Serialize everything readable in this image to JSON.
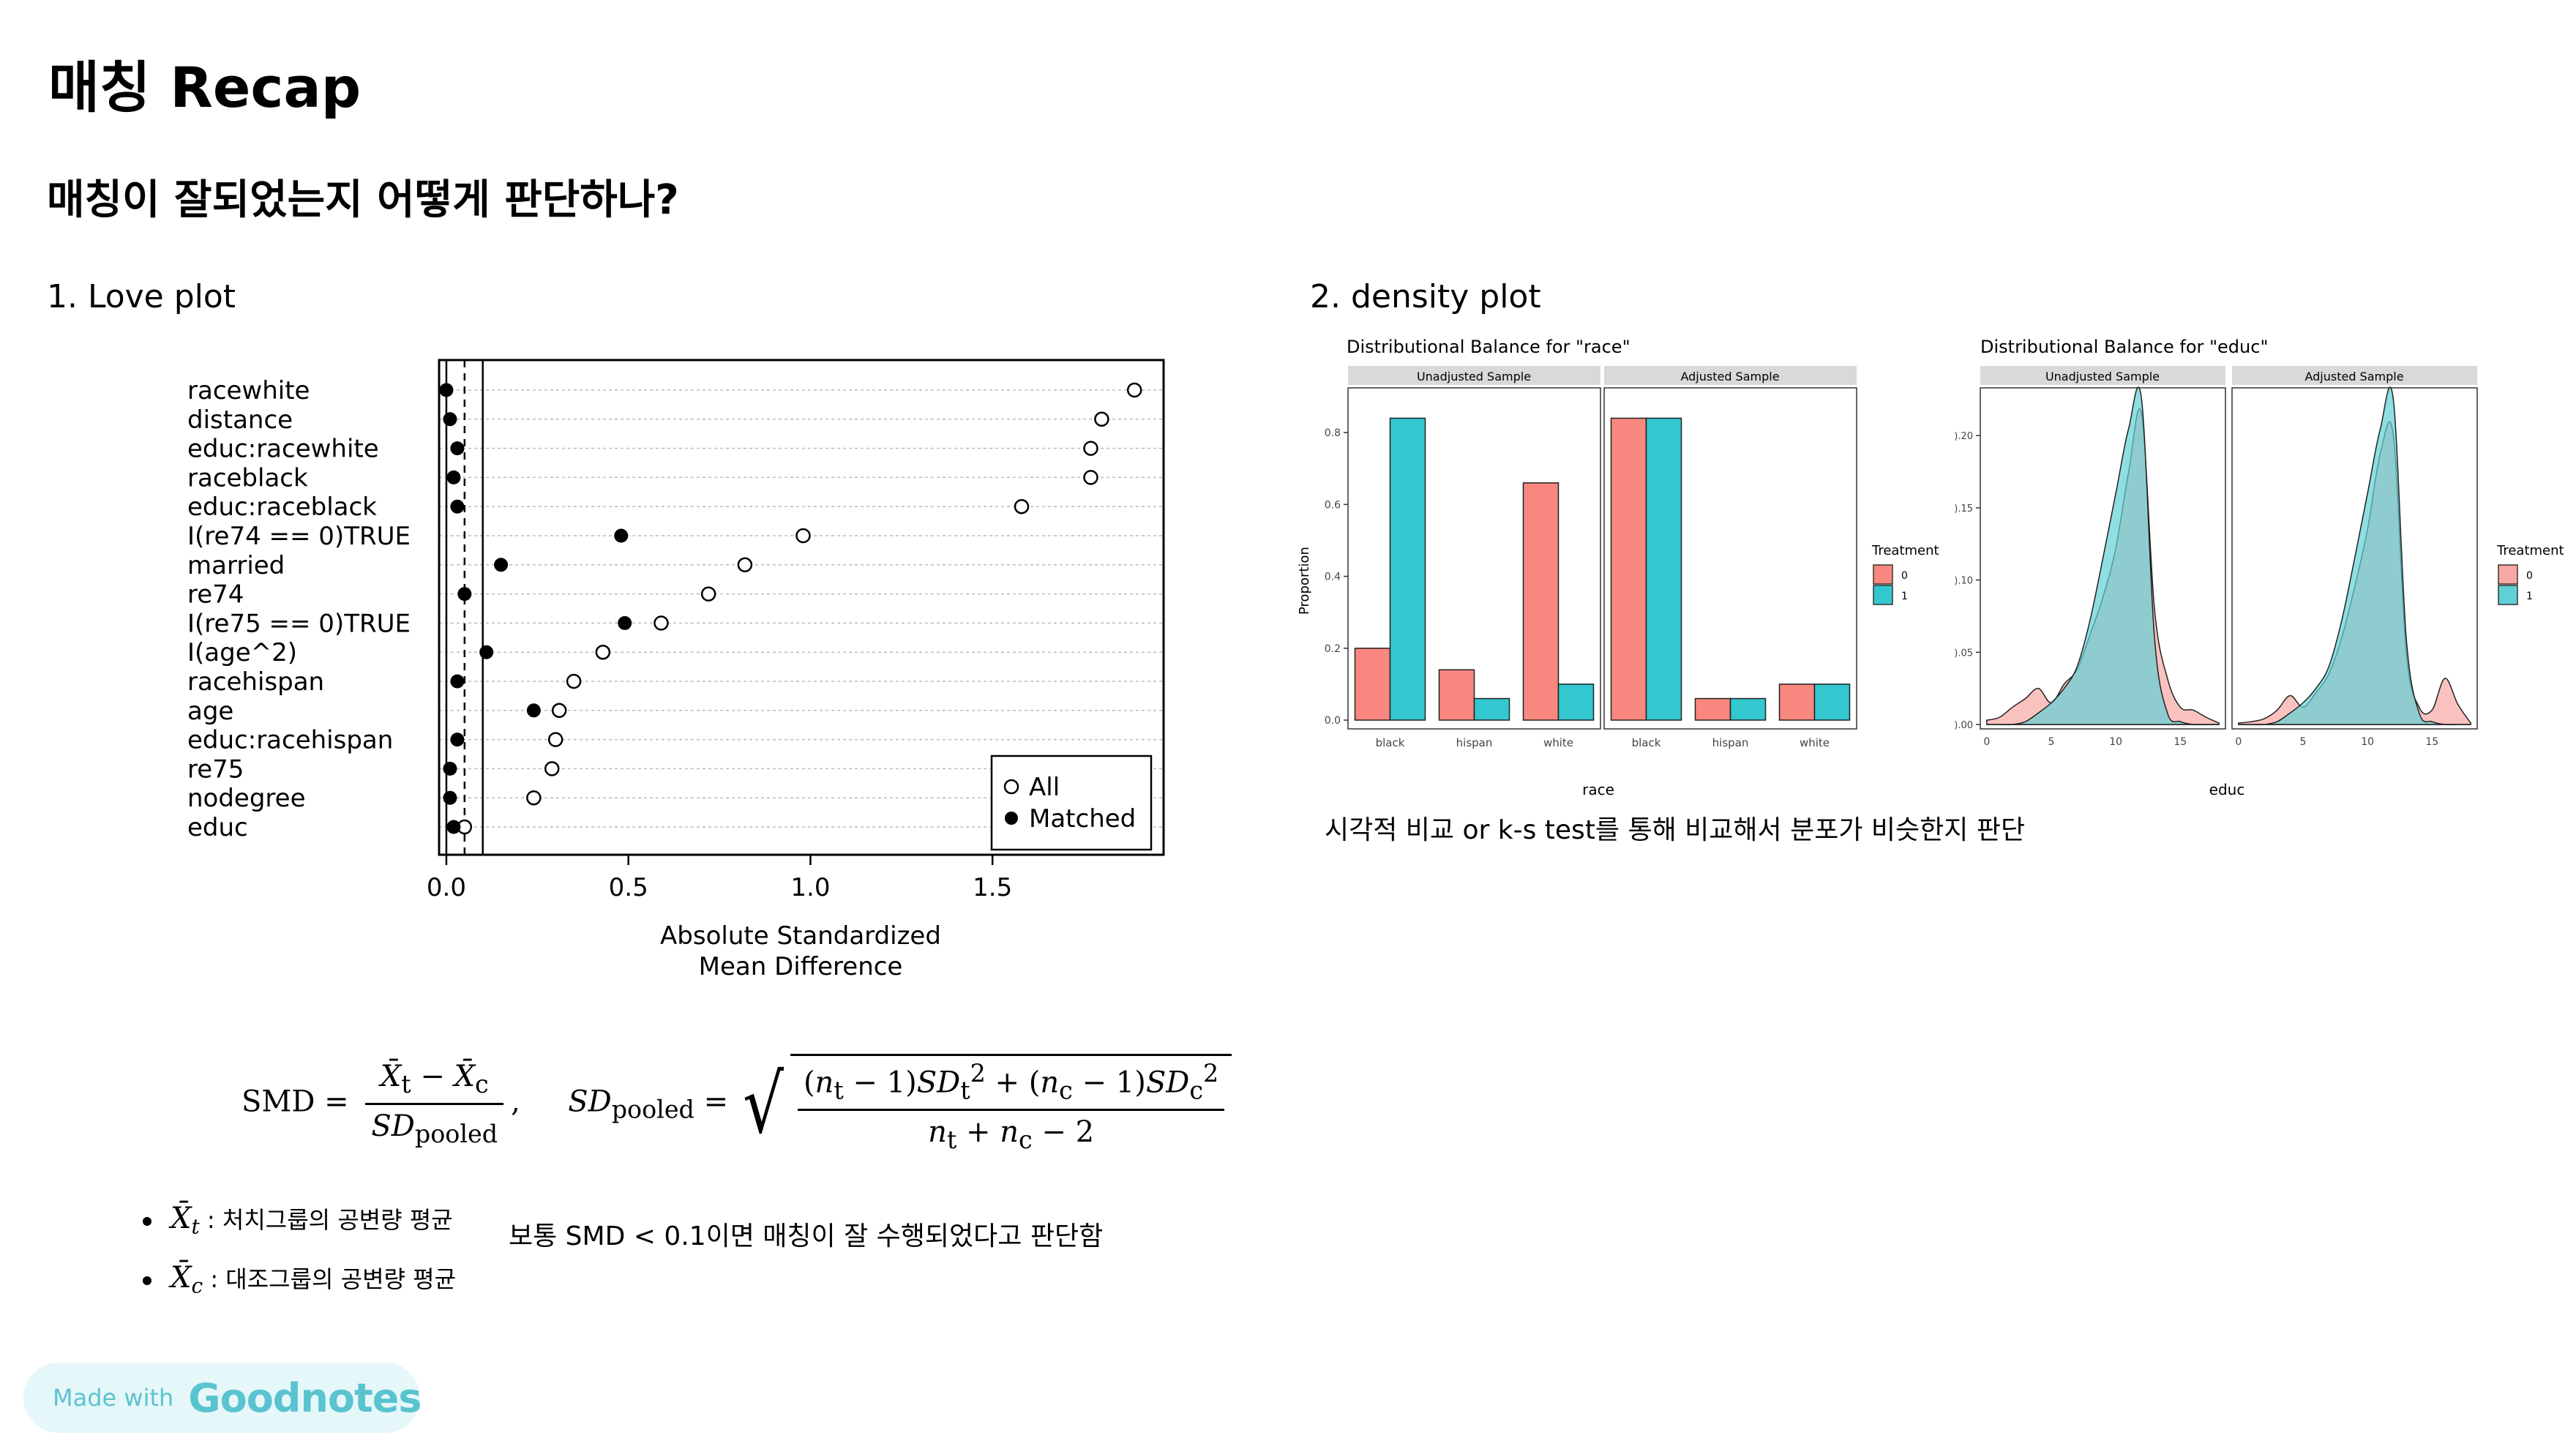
{
  "title": "매칭 Recap",
  "question": "매칭이 잘되었는지 어떻게 판단하나?",
  "section1": "1. Love plot",
  "section2": "2. density plot",
  "love_plot": {
    "chart_data": {
      "type": "scatter",
      "variables": [
        "racewhite",
        "distance",
        "educ:racewhite",
        "raceblack",
        "educ:raceblack",
        "I(re74 == 0)TRUE",
        "married",
        "re74",
        "I(re75 == 0)TRUE",
        "I(age^2)",
        "racehispan",
        "age",
        "educ:racehispan",
        "re75",
        "nodegree",
        "educ"
      ],
      "series": [
        {
          "name": "All",
          "marker": "open-circle",
          "values": [
            1.89,
            1.8,
            1.77,
            1.77,
            1.58,
            0.98,
            0.82,
            0.72,
            0.59,
            0.43,
            0.35,
            0.31,
            0.3,
            0.29,
            0.24,
            0.05
          ]
        },
        {
          "name": "Matched",
          "marker": "filled-circle",
          "values": [
            0.0,
            0.01,
            0.03,
            0.02,
            0.03,
            0.48,
            0.15,
            0.05,
            0.49,
            0.11,
            0.03,
            0.24,
            0.03,
            0.01,
            0.01,
            0.02
          ]
        }
      ],
      "xlabel": "Absolute Standardized\nMean Difference",
      "xticks": [
        0.0,
        0.5,
        1.0,
        1.5
      ],
      "xlim": [
        -0.02,
        1.97
      ],
      "threshold_lines": [
        0.05,
        0.1
      ],
      "legend_position": "bottom-right"
    },
    "xlabel_line1": "Absolute Standardized",
    "xlabel_line2": "Mean Difference",
    "tick_labels": [
      "0.0",
      "0.5",
      "1.0",
      "1.5"
    ],
    "legend": {
      "all": "All",
      "matched": "Matched"
    }
  },
  "race_plot": {
    "chart_data": {
      "type": "bar",
      "title": "Distributional Balance for \"race\"",
      "panels": [
        "Unadjusted Sample",
        "Adjusted Sample"
      ],
      "categories": [
        "black",
        "hispan",
        "white"
      ],
      "series": [
        {
          "name": "0",
          "color": "#f8877f",
          "unadjusted": [
            0.2,
            0.14,
            0.66
          ],
          "adjusted": [
            0.84,
            0.06,
            0.1
          ]
        },
        {
          "name": "1",
          "color": "#33c7cf",
          "unadjusted": [
            0.84,
            0.06,
            0.1
          ],
          "adjusted": [
            0.84,
            0.06,
            0.1
          ]
        }
      ],
      "xlabel": "race",
      "ylabel": "Proportion",
      "yticks": [
        0.0,
        0.2,
        0.4,
        0.6,
        0.8
      ],
      "ylim": [
        0,
        0.9
      ],
      "legend_title": "Treatment",
      "legend_position": "right"
    },
    "ytick_labels": [
      "0.0",
      "0.2",
      "0.4",
      "0.6",
      "0.8"
    ]
  },
  "educ_plot": {
    "chart_data": {
      "type": "area",
      "title": "Distributional Balance for \"educ\"",
      "panels": [
        "Unadjusted Sample",
        "Adjusted Sample"
      ],
      "x": [
        0,
        1,
        2,
        3,
        4,
        5,
        6,
        7,
        8,
        9,
        10,
        11,
        12,
        13,
        14,
        15,
        16,
        17,
        18
      ],
      "series": [
        {
          "name": "0",
          "color": "#f8a8a2",
          "unadjusted": [
            0.003,
            0.005,
            0.012,
            0.018,
            0.025,
            0.015,
            0.028,
            0.038,
            0.062,
            0.088,
            0.122,
            0.175,
            0.215,
            0.08,
            0.032,
            0.012,
            0.01,
            0.005,
            0.001
          ],
          "adjusted": [
            0.001,
            0.002,
            0.004,
            0.01,
            0.02,
            0.012,
            0.022,
            0.035,
            0.06,
            0.095,
            0.135,
            0.188,
            0.2,
            0.05,
            0.012,
            0.01,
            0.032,
            0.014,
            0.001
          ]
        },
        {
          "name": "1",
          "color": "#5fd0d6",
          "unadjusted": [
            0.0,
            0.0,
            0.0,
            0.002,
            0.008,
            0.015,
            0.025,
            0.04,
            0.072,
            0.115,
            0.16,
            0.205,
            0.225,
            0.06,
            0.008,
            0.002,
            0.0,
            0.0,
            0.0
          ],
          "adjusted": [
            0.0,
            0.0,
            0.0,
            0.002,
            0.008,
            0.015,
            0.025,
            0.04,
            0.072,
            0.115,
            0.16,
            0.205,
            0.225,
            0.06,
            0.008,
            0.002,
            0.0,
            0.0,
            0.0
          ]
        }
      ],
      "xlabel": "educ",
      "xticks": [
        0,
        5,
        10,
        15
      ],
      "yticks": [
        0.0,
        0.05,
        0.1,
        0.15,
        0.2
      ],
      "ylim": [
        0,
        0.23
      ],
      "legend_title": "Treatment",
      "legend_position": "right"
    },
    "ytick_labels": [
      ").00",
      ").05",
      ").10",
      ").15",
      ").20"
    ]
  },
  "density_caption": "시각적 비교 or k-s test를 통해 비교해서 분포가 비슷한지 판단",
  "formula": {
    "smd": "SMD",
    "sd_pooled": "SD",
    "pooled": "pooled"
  },
  "bullets": [
    {
      "symbol": "X̄",
      "sub": "t",
      "text": ": 처치그룹의 공변량 평균"
    },
    {
      "symbol": "X̄",
      "sub": "c",
      "text": ": 대조그룹의 공변량 평균"
    }
  ],
  "smd_note": "보통 SMD < 0.1이면 매칭이 잘 수행되었다고 판단함",
  "badge": {
    "made_with": "Made with",
    "brand": "Goodnotes"
  },
  "colors": {
    "control": "#f8877f",
    "treated": "#33c7cf",
    "strip": "#d9d9d9",
    "badge_bg": "#e6f7f9",
    "badge_fg": "#5ac3d0"
  }
}
